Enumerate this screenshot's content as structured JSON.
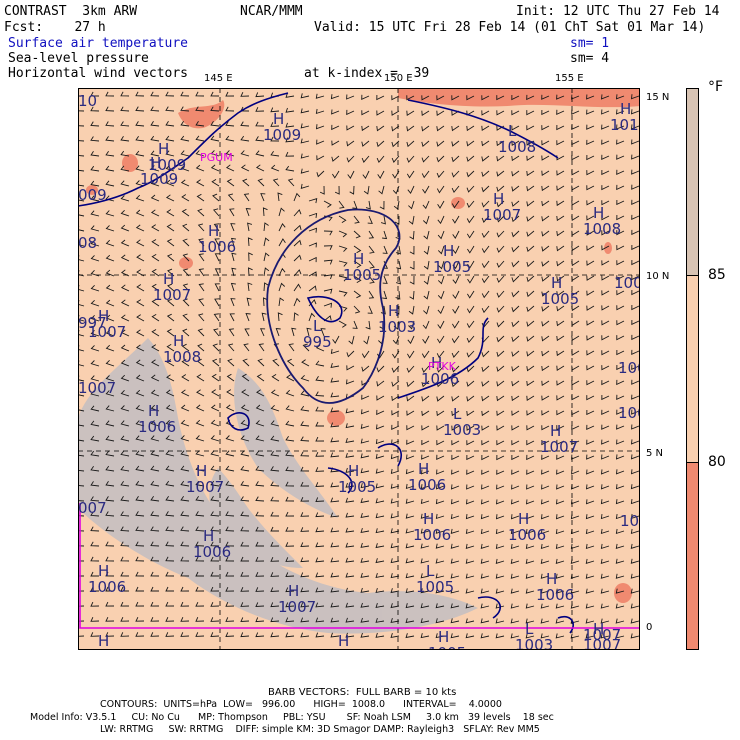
{
  "header": {
    "model": "CONTRAST  3km ARW",
    "center": "NCAR/MMM",
    "init": "Init: 12 UTC Thu 27 Feb 14",
    "fcst": "Fcst:    27 h",
    "valid": "Valid: 15 UTC Fri 28 Feb 14 (01 ChT Sat 01 Mar 14)",
    "field1": "Surface air temperature",
    "field2": "Sea-level pressure",
    "field3": "Horizontal wind vectors",
    "sm1": "sm= 1",
    "sm2": "sm= 4",
    "kindex": "at k-index =  39"
  },
  "axes": {
    "lon_labels": [
      "145 E",
      "150 E",
      "155 E"
    ],
    "lat_labels": [
      "15 N",
      "10 N",
      "5 N",
      "0"
    ]
  },
  "colorbar": {
    "unit": "°F",
    "labels": [
      "85",
      "80"
    ],
    "colors": {
      "top": "#d8c4b4",
      "mid": "#f9d0b0",
      "low": "#f08a70"
    }
  },
  "map_colors": {
    "warm": "#f9d0b0",
    "cool": "#c8c0c0",
    "hot": "#f08a70",
    "coast": "#000080",
    "h_l": "#2a2a80",
    "place": "#e000e0"
  },
  "places": [
    "PGUM",
    "PTKK"
  ],
  "pressure_labels": [
    {
      "t": "H",
      "v": "1009"
    },
    {
      "t": "H",
      "v": "1009"
    },
    {
      "t": "H",
      "v": "1010"
    },
    {
      "t": "L",
      "v": "1008"
    },
    {
      "t": "H",
      "v": "1009"
    },
    {
      "t": "H",
      "v": "1007"
    },
    {
      "t": "H",
      "v": "1008"
    },
    {
      "t": "H",
      "v": "1006"
    },
    {
      "t": "H",
      "v": "1005"
    },
    {
      "t": "H",
      "v": "1005"
    },
    {
      "t": "H",
      "v": "1005"
    },
    {
      "t": "H",
      "v": "1007"
    },
    {
      "t": "L",
      "v": "995"
    },
    {
      "t": "H",
      "v": "1003"
    },
    {
      "t": "H",
      "v": "1007"
    },
    {
      "t": "H",
      "v": "1008"
    },
    {
      "t": "H",
      "v": "1006"
    },
    {
      "t": "H",
      "v": "1006"
    },
    {
      "t": "L",
      "v": "1003"
    },
    {
      "t": "H",
      "v": "1007"
    },
    {
      "t": "H",
      "v": "1007"
    },
    {
      "t": "H",
      "v": "1005"
    },
    {
      "t": "H",
      "v": "1006"
    },
    {
      "t": "H",
      "v": "1006"
    },
    {
      "t": "H",
      "v": "1006"
    },
    {
      "t": "L",
      "v": "1005"
    },
    {
      "t": "H",
      "v": "1006"
    },
    {
      "t": "H",
      "v": "1006"
    },
    {
      "t": "H",
      "v": "1007"
    },
    {
      "t": "H",
      "v": "1006"
    },
    {
      "t": "H",
      "v": "1005"
    },
    {
      "t": "L",
      "v": "1003"
    },
    {
      "t": "H",
      "v": "1007"
    },
    {
      "t": "H",
      "v": "1008"
    },
    {
      "t": "H",
      "v": "1006"
    }
  ],
  "edge_labels": [
    "10",
    "009",
    "08",
    "997",
    "007",
    "1007",
    "100",
    "100",
    "100",
    "100",
    "1007"
  ],
  "footer": {
    "barb": "BARB VECTORS:  FULL BARB = 10 kts",
    "contours": "CONTOURS:  UNITS=hPa  LOW=   996.00      HIGH=  1008.0      INTERVAL=    4.0000",
    "model_line1": "Model Info: V3.5.1     CU: No Cu      MP: Thompson     PBL: YSU       SF: Noah LSM     3.0 km   39 levels    18 sec",
    "model_line2": "LW: RRTMG     SW: RRTMG    DIFF: simple KM: 3D Smagor DAMP: Rayleigh3   SFLAY: Rev MM5"
  }
}
